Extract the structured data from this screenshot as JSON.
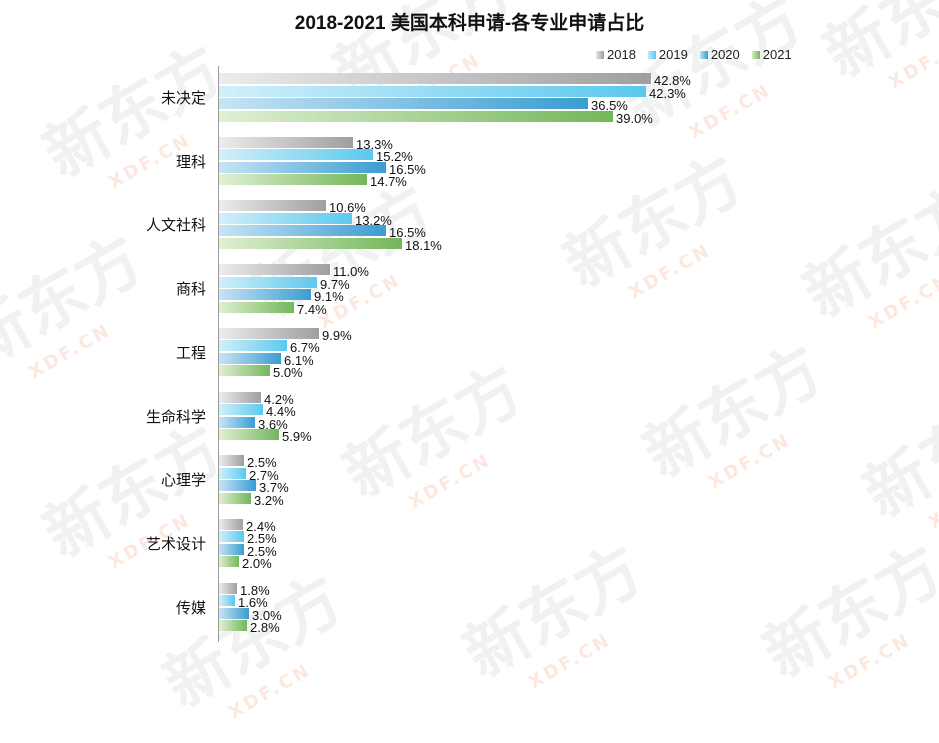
{
  "chart_data": {
    "type": "bar",
    "orientation": "horizontal",
    "title": "2018-2021 美国本科申请-各专业申请占比",
    "xlabel": "",
    "ylabel": "",
    "categories": [
      "未决定",
      "理科",
      "人文社科",
      "商科",
      "工程",
      "生命科学",
      "心理学",
      "艺术设计",
      "传媒"
    ],
    "series": [
      {
        "name": "2018",
        "color": "#9e9fa3",
        "values": [
          42.8,
          13.3,
          10.6,
          11.0,
          9.9,
          4.2,
          2.5,
          2.4,
          1.8
        ]
      },
      {
        "name": "2019",
        "color": "#5cc8ee",
        "values": [
          42.3,
          15.2,
          13.2,
          9.7,
          6.7,
          4.4,
          2.7,
          2.5,
          1.6
        ]
      },
      {
        "name": "2020",
        "color": "#3a9dd1",
        "values": [
          36.5,
          16.5,
          16.5,
          9.1,
          6.1,
          3.6,
          3.7,
          2.5,
          3.0
        ]
      },
      {
        "name": "2021",
        "color": "#74b65a",
        "values": [
          39.0,
          14.7,
          18.1,
          7.4,
          5.0,
          5.9,
          3.2,
          2.0,
          2.8
        ]
      }
    ],
    "value_labels": [
      [
        "42.8%",
        "42.3%",
        "36.5%",
        "39.0%"
      ],
      [
        "13.3%",
        "15.2%",
        "16.5%",
        "14.7%"
      ],
      [
        "10.6%",
        "13.2%",
        "16.5%",
        "18.1%"
      ],
      [
        "11.0%",
        "9.7%",
        "9.1%",
        "7.4%"
      ],
      [
        "9.9%",
        "6.7%",
        "6.1%",
        "5.0%"
      ],
      [
        "4.2%",
        "4.4%",
        "3.6%",
        "5.9%"
      ],
      [
        "2.5%",
        "2.7%",
        "3.7%",
        "3.2%"
      ],
      [
        "2.4%",
        "2.5%",
        "2.5%",
        "2.0%"
      ],
      [
        "1.8%",
        "1.6%",
        "3.0%",
        "2.8%"
      ]
    ],
    "legend_position": "top-right",
    "grid": false,
    "unit": "%"
  },
  "legend": {
    "labels": [
      "2018",
      "2019",
      "2020",
      "2021"
    ]
  },
  "watermark": {
    "text": "新东方",
    "subtext": "XDF.CN"
  }
}
